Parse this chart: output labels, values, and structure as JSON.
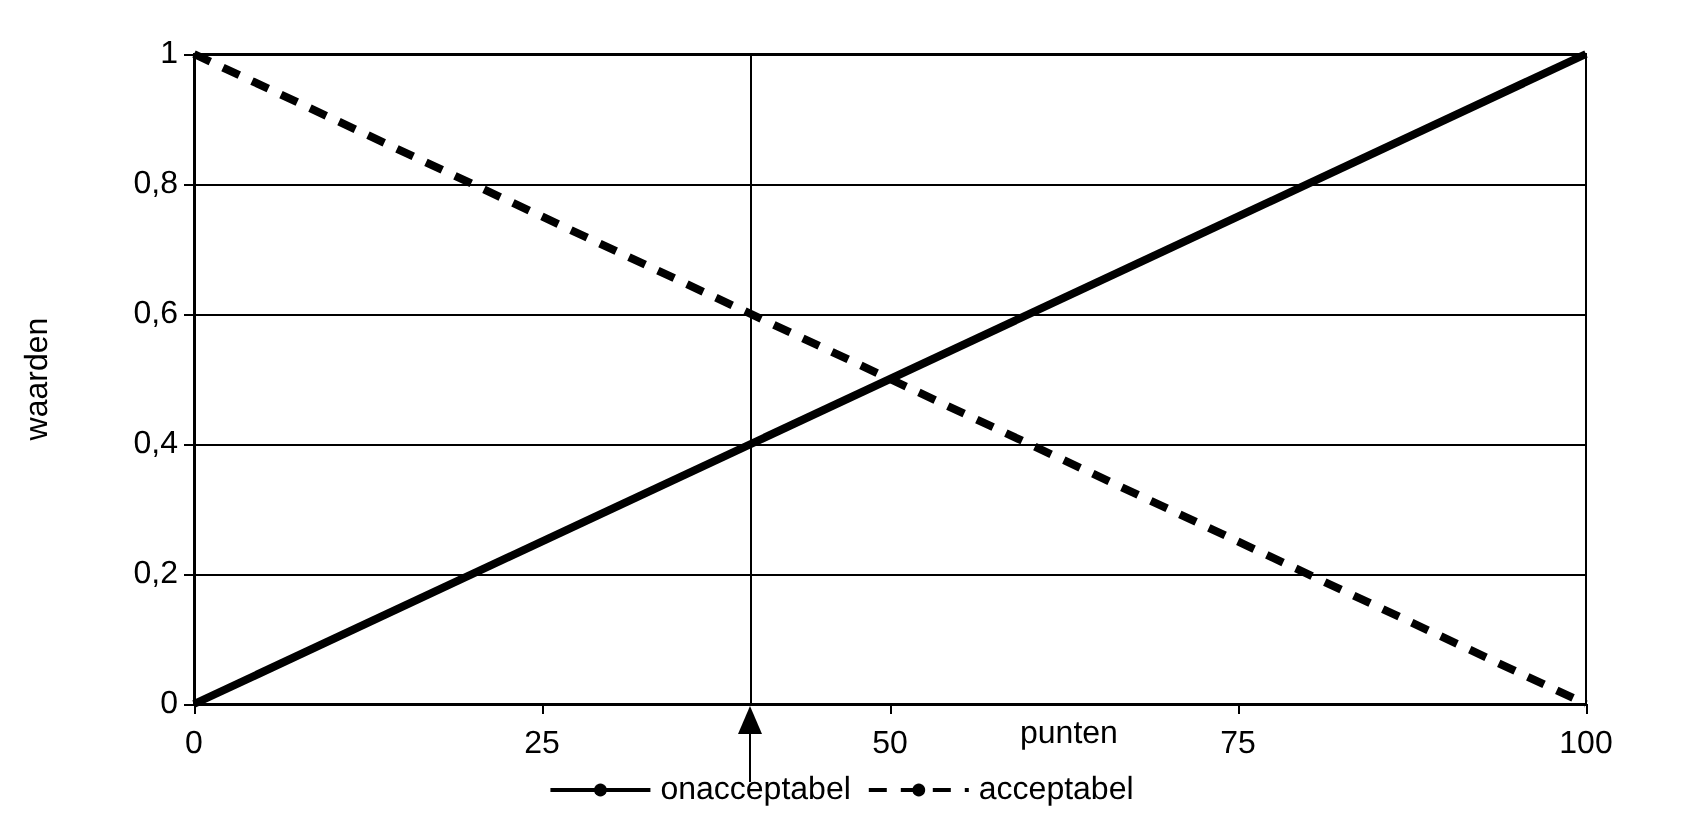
{
  "chart_data": {
    "type": "line",
    "xlabel": "punten",
    "ylabel": "waarden",
    "x": [
      0,
      100
    ],
    "series": [
      {
        "name": "onacceptabel",
        "color": "#000000",
        "values": [
          0,
          1
        ],
        "line_style": "solid"
      },
      {
        "name": "acceptabel",
        "color": "#000000",
        "values": [
          1,
          0
        ],
        "line_style": "dashed"
      }
    ],
    "xlim": [
      0,
      100
    ],
    "xticks": [
      0,
      25,
      50,
      75,
      100
    ],
    "ylim": [
      0,
      1
    ],
    "yticks": [
      0,
      {
        "value": 0.2,
        "label": "0,2"
      },
      {
        "value": 0.4,
        "label": "0,4"
      },
      {
        "value": 0.6,
        "label": "0,6"
      },
      {
        "value": 0.8,
        "label": "0,8"
      },
      1
    ],
    "grid": "y",
    "legend": "bottom",
    "marker": "none",
    "ref_lines": [
      {
        "axis": "x",
        "value": 40,
        "color": "#000000"
      }
    ]
  }
}
